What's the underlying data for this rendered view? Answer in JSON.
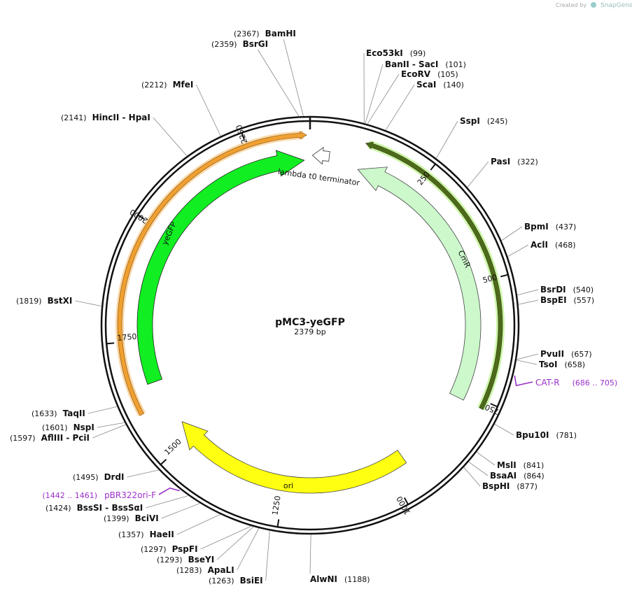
{
  "header": {
    "created_by": "Created by",
    "brand": "SnapGene"
  },
  "plasmid": {
    "name": "pMC3-yeGFP",
    "length": "2379 bp"
  },
  "sites": [
    {
      "name": "Eco53kI",
      "position": "(99)"
    },
    {
      "name": "BanII  - SacI",
      "position": "(101)"
    },
    {
      "name": "EcoRV",
      "position": "(105)"
    },
    {
      "name": "ScaI",
      "position": "(140)"
    },
    {
      "name": "SspI",
      "position": "(245)"
    },
    {
      "name": "PasI",
      "position": "(322)"
    },
    {
      "name": "BpmI",
      "position": "(437)"
    },
    {
      "name": "AclI",
      "position": "(468)"
    },
    {
      "name": "BsrDI",
      "position": "(540)"
    },
    {
      "name": "BspEI",
      "position": "(557)"
    },
    {
      "name": "PvuII",
      "position": "(657)"
    },
    {
      "name": "TsoI",
      "position": "(658)"
    },
    {
      "name": "Bpu10I",
      "position": "(781)"
    },
    {
      "name": "MslI",
      "position": "(841)"
    },
    {
      "name": "BsaAI",
      "position": "(864)"
    },
    {
      "name": "BspHI",
      "position": "(877)"
    },
    {
      "name": "AlwNI",
      "position": "(1188)"
    },
    {
      "name": "BamHI",
      "position": "(2367)"
    },
    {
      "name": "BsrGI",
      "position": "(2359)"
    },
    {
      "name": "MfeI",
      "position": "(2212)"
    },
    {
      "name": "HincII  - HpaI",
      "position": "(2141)"
    },
    {
      "name": "BstXI",
      "position": "(1819)"
    },
    {
      "name": "TaqII",
      "position": "(1633)"
    },
    {
      "name": "NspI",
      "position": "(1601)"
    },
    {
      "name": "AflIII  - PciI",
      "position": "(1597)"
    },
    {
      "name": "DrdI",
      "position": "(1495)"
    },
    {
      "name": "BssSI  - BssSαI",
      "position": "(1424)"
    },
    {
      "name": "BciVI",
      "position": "(1399)"
    },
    {
      "name": "HaeII",
      "position": "(1357)"
    },
    {
      "name": "PspFI",
      "position": "(1297)"
    },
    {
      "name": "BseYI",
      "position": "(1293)"
    },
    {
      "name": "ApaLI",
      "position": "(1283)"
    },
    {
      "name": "BsiEI",
      "position": "(1263)"
    }
  ],
  "features": [
    {
      "label": "yeGFP"
    },
    {
      "label": "CmR"
    },
    {
      "label": "ori"
    },
    {
      "label": "lambda t0 terminator"
    }
  ],
  "primers": [
    {
      "name": "CAT-R",
      "range": "(686 .. 705)"
    },
    {
      "name": "pBR322ori-F",
      "range": "(1442 .. 1461)"
    }
  ],
  "ticks": [
    250,
    500,
    750,
    1000,
    1250,
    1500,
    1750,
    2000,
    2250
  ]
}
